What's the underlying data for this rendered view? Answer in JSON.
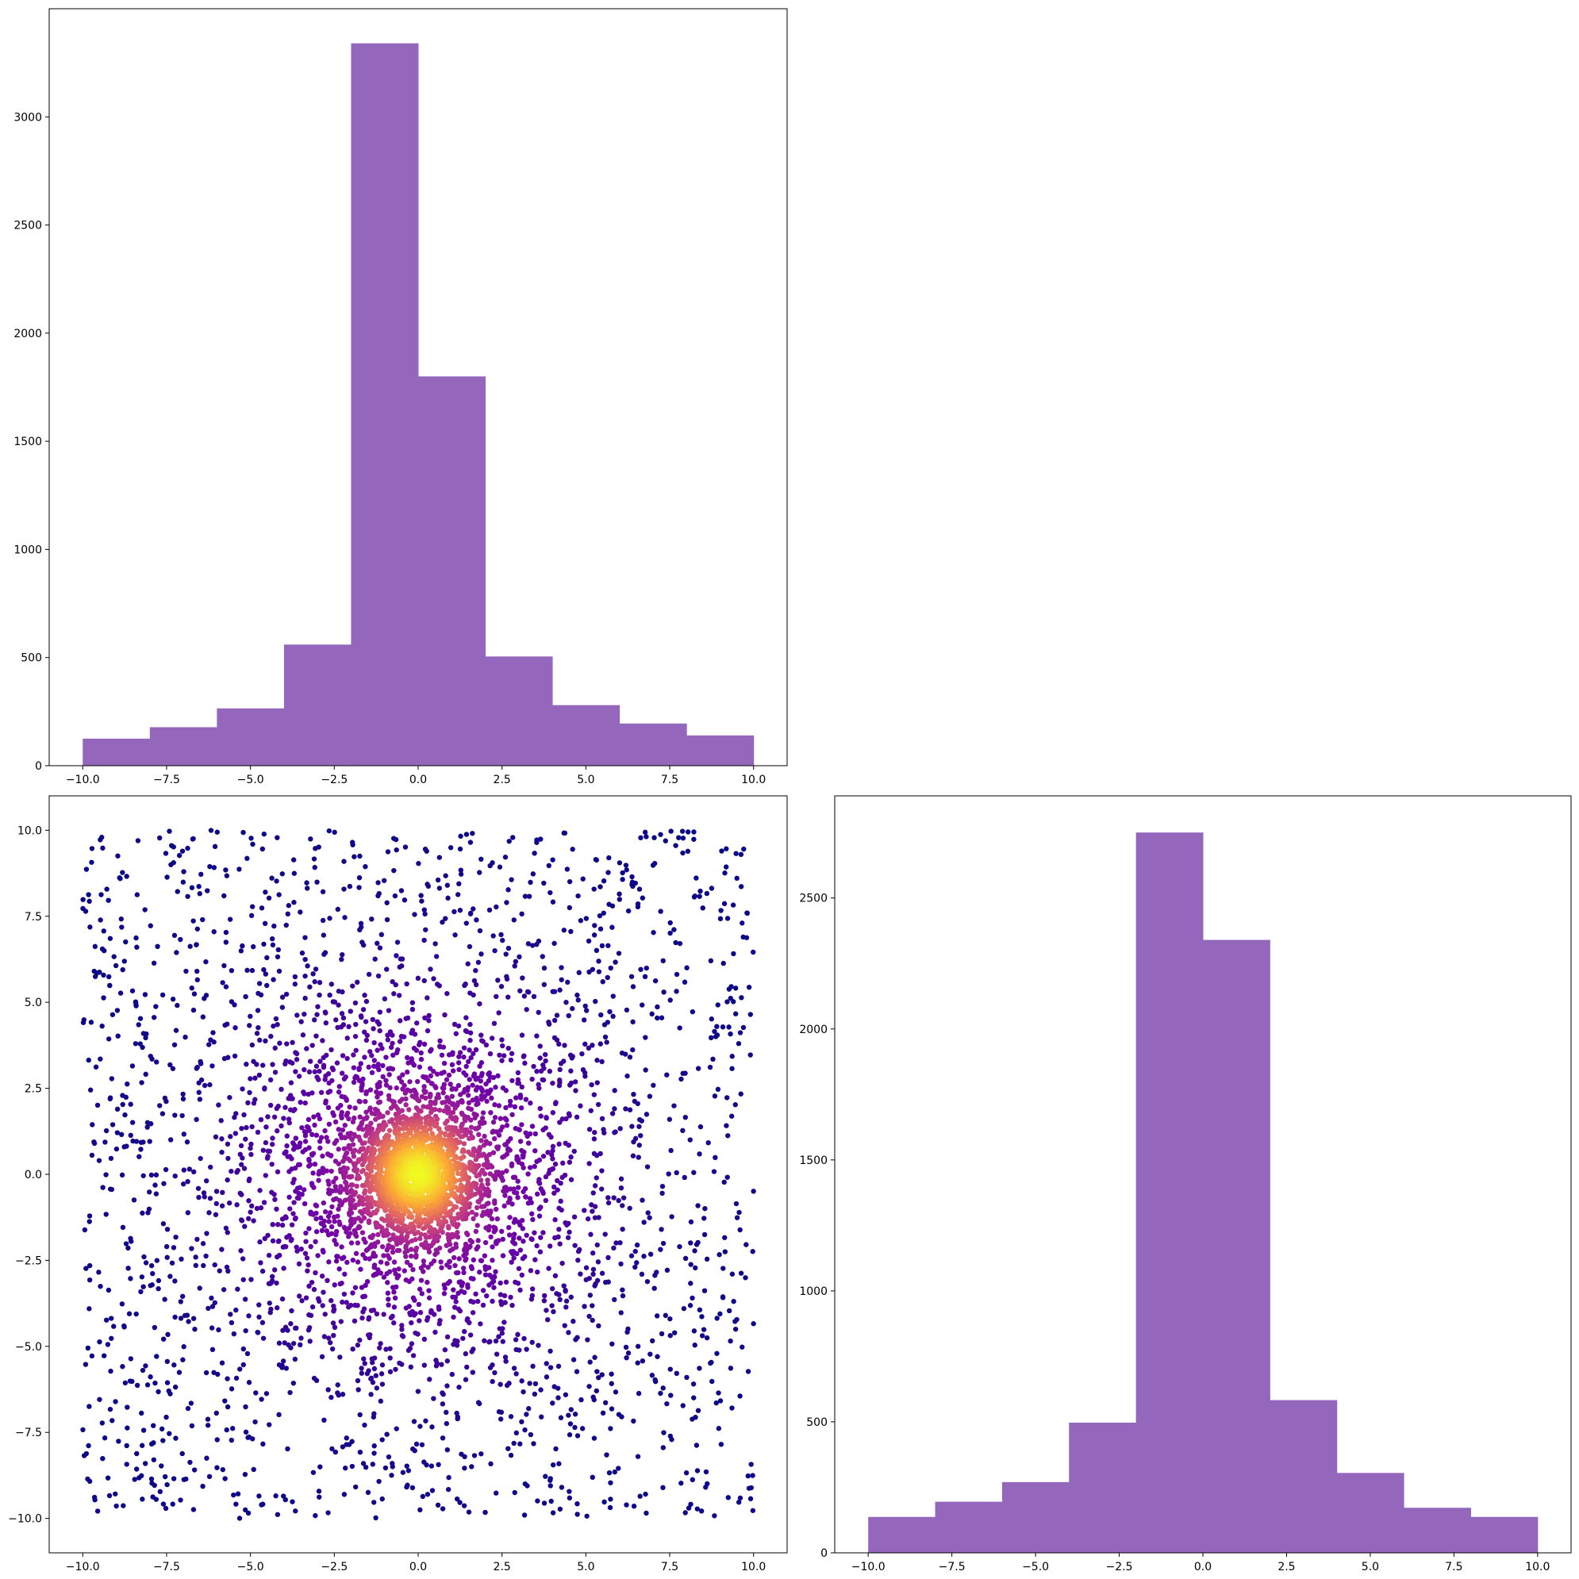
{
  "chart_data": [
    {
      "type": "bar",
      "histogram": true,
      "bin_edges": [
        -10,
        -8,
        -6,
        -4,
        -2,
        0,
        2,
        4,
        6,
        8,
        10
      ],
      "values": [
        125,
        178,
        265,
        560,
        3340,
        1800,
        505,
        280,
        195,
        140
      ],
      "xlim": [
        -11,
        11
      ],
      "ylim": [
        0,
        3500
      ],
      "xticks": [
        -10.0,
        -7.5,
        -5.0,
        -2.5,
        0.0,
        2.5,
        5.0,
        7.5,
        10.0
      ],
      "xtick_labels": [
        "−10.0",
        "−7.5",
        "−5.0",
        "−2.5",
        "0.0",
        "2.5",
        "5.0",
        "7.5",
        "10.0"
      ],
      "yticks": [
        0,
        500,
        1000,
        1500,
        2000,
        2500,
        3000
      ],
      "ytick_labels": [
        "0",
        "500",
        "1000",
        "1500",
        "2000",
        "2500",
        "3000"
      ],
      "bar_color": "#9467bd",
      "grid": false
    },
    {
      "type": "scatter",
      "point_count": 5000,
      "distribution": "mixture of a dense normal core (sigma≈1) at the origin, a wider normal halo (sigma≈2.5) and a uniform background on [-10, 10]",
      "color_by": "point density",
      "colormap": [
        "#0d0887",
        "#6a00a8",
        "#b12a90",
        "#e16462",
        "#fca636",
        "#f0f921"
      ],
      "xlim": [
        -11,
        11
      ],
      "ylim": [
        -11,
        11
      ],
      "xticks": [
        -10.0,
        -7.5,
        -5.0,
        -2.5,
        0.0,
        2.5,
        5.0,
        7.5,
        10.0
      ],
      "xtick_labels": [
        "−10.0",
        "−7.5",
        "−5.0",
        "−2.5",
        "0.0",
        "2.5",
        "5.0",
        "7.5",
        "10.0"
      ],
      "yticks": [
        -10.0,
        -7.5,
        -5.0,
        -2.5,
        0.0,
        2.5,
        5.0,
        7.5,
        10.0
      ],
      "ytick_labels": [
        "−10.0",
        "−7.5",
        "−5.0",
        "−2.5",
        "0.0",
        "2.5",
        "5.0",
        "7.5",
        "10.0"
      ],
      "grid": false
    },
    {
      "type": "bar",
      "histogram": true,
      "bin_edges": [
        -10,
        -8,
        -6,
        -4,
        -2,
        0,
        2,
        4,
        6,
        8,
        10
      ],
      "values": [
        137,
        195,
        270,
        497,
        2750,
        2340,
        583,
        305,
        172,
        137
      ],
      "xlim": [
        -11,
        11
      ],
      "ylim": [
        0,
        2890
      ],
      "xticks": [
        -10.0,
        -7.5,
        -5.0,
        -2.5,
        0.0,
        2.5,
        5.0,
        7.5,
        10.0
      ],
      "xtick_labels": [
        "−10.0",
        "−7.5",
        "−5.0",
        "−2.5",
        "0.0",
        "2.5",
        "5.0",
        "7.5",
        "10.0"
      ],
      "yticks": [
        0,
        500,
        1000,
        1500,
        2000,
        2500
      ],
      "ytick_labels": [
        "0",
        "500",
        "1000",
        "1500",
        "2000",
        "2500"
      ],
      "bar_color": "#9467bd",
      "grid": false
    }
  ]
}
